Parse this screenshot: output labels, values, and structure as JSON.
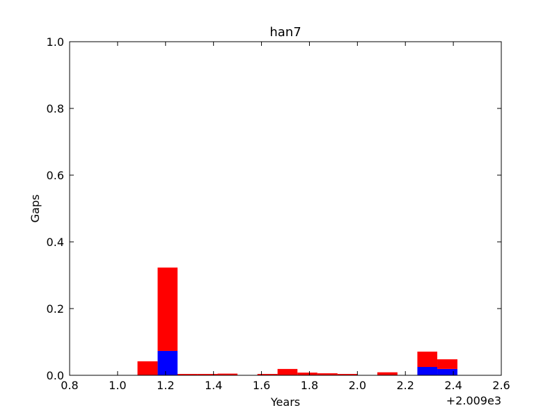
{
  "chart_data": {
    "type": "histogram",
    "stacked": true,
    "title": "han7",
    "xlabel": "Years",
    "ylabel": "Gaps",
    "x_offset_label": "+2.009e3",
    "bins": [
      1.083,
      1.167,
      1.25,
      1.333,
      1.417,
      1.5,
      1.583,
      1.667,
      1.75,
      1.833,
      1.917,
      2.0,
      2.083,
      2.167,
      2.25,
      2.333,
      2.417
    ],
    "series": [
      {
        "color": "#0000ff",
        "values": [
          0,
          0.073,
          0,
          0,
          0,
          0,
          0,
          0,
          0,
          0,
          0,
          0,
          0,
          0,
          0.025,
          0.019
        ]
      },
      {
        "color": "#ff0000",
        "values": [
          0.042,
          0.25,
          0.004,
          0.004,
          0.005,
          0,
          0.004,
          0.019,
          0.008,
          0.006,
          0.004,
          0,
          0.009,
          0,
          0.046,
          0.029
        ]
      }
    ],
    "xlim": [
      0.8,
      2.6
    ],
    "xticks": [
      0.8,
      {
        "value": 1,
        "label": "1.0"
      },
      1.2,
      1.4,
      1.6,
      1.8,
      {
        "value": 2,
        "label": "2.0"
      },
      2.2,
      2.4,
      2.6
    ],
    "ylim": [
      0,
      1
    ],
    "yticks": [
      {
        "value": 0,
        "label": "0.0"
      },
      0.2,
      0.4,
      0.6,
      0.8,
      {
        "value": 1,
        "label": "1.0"
      }
    ]
  }
}
